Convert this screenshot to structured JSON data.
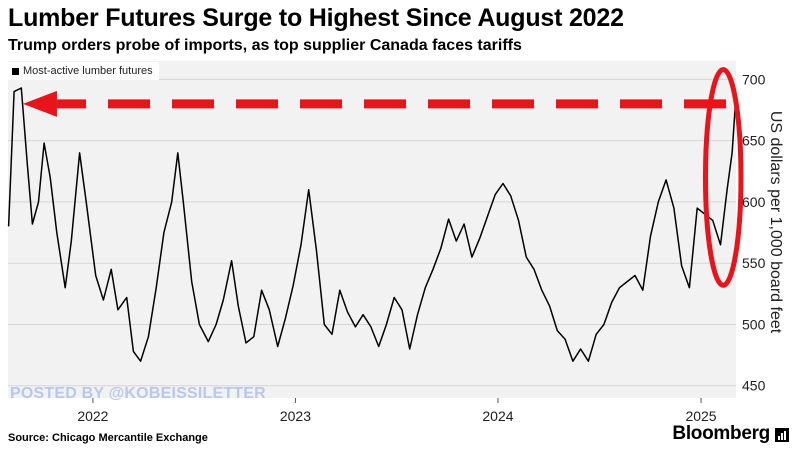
{
  "header": {
    "title": "Lumber Futures Surge to Highest Since August 2022",
    "subtitle": "Trump orders probe of imports, as top supplier Canada faces tariffs"
  },
  "footer": {
    "source": "Source: Chicago Mercantile Exchange",
    "brand": "Bloomberg",
    "watermark": "POSTED BY @KOBEISSILETTER"
  },
  "colors": {
    "line": "#000000",
    "annotation": "#e8141c",
    "background_band": "#f2f2f2",
    "gridline": "#d6d6d6"
  },
  "chart_data": {
    "type": "line",
    "title": "Lumber Futures Surge to Highest Since August 2022",
    "subtitle": "Trump orders probe of imports, as top supplier Canada faces tariffs",
    "ylabel": "US dollars per 1,000 board feet",
    "xlabel": "",
    "legend": {
      "placement": "top-left",
      "entries": [
        "Most-active lumber futures"
      ]
    },
    "y_axis": {
      "side": "right",
      "ylim": [
        440,
        715
      ],
      "ticks": [
        450,
        500,
        550,
        600,
        650,
        700
      ]
    },
    "x_axis": {
      "range": [
        "2021-08-01",
        "2025-03-05"
      ],
      "ticks": [
        {
          "date": "2022-01-01",
          "label": "2022"
        },
        {
          "date": "2023-01-01",
          "label": "2023"
        },
        {
          "date": "2024-01-01",
          "label": "2024"
        },
        {
          "date": "2025-01-01",
          "label": "2025"
        }
      ]
    },
    "grid": true,
    "series": [
      {
        "name": "Most-active lumber futures",
        "points": [
          [
            "2021-08-02",
            580
          ],
          [
            "2021-08-12",
            690
          ],
          [
            "2021-08-25",
            693
          ],
          [
            "2021-09-05",
            630
          ],
          [
            "2021-09-14",
            582
          ],
          [
            "2021-09-25",
            600
          ],
          [
            "2021-10-05",
            648
          ],
          [
            "2021-10-16",
            620
          ],
          [
            "2021-10-28",
            575
          ],
          [
            "2021-11-12",
            530
          ],
          [
            "2021-11-23",
            568
          ],
          [
            "2021-12-08",
            640
          ],
          [
            "2021-12-20",
            600
          ],
          [
            "2022-01-06",
            540
          ],
          [
            "2022-01-20",
            520
          ],
          [
            "2022-02-03",
            545
          ],
          [
            "2022-02-15",
            512
          ],
          [
            "2022-03-03",
            522
          ],
          [
            "2022-03-15",
            478
          ],
          [
            "2022-03-28",
            470
          ],
          [
            "2022-04-11",
            490
          ],
          [
            "2022-04-25",
            530
          ],
          [
            "2022-05-09",
            575
          ],
          [
            "2022-05-23",
            600
          ],
          [
            "2022-06-03",
            640
          ],
          [
            "2022-06-13",
            600
          ],
          [
            "2022-06-28",
            535
          ],
          [
            "2022-07-12",
            500
          ],
          [
            "2022-07-28",
            486
          ],
          [
            "2022-08-11",
            500
          ],
          [
            "2022-08-24",
            520
          ],
          [
            "2022-09-08",
            552
          ],
          [
            "2022-09-20",
            515
          ],
          [
            "2022-10-04",
            485
          ],
          [
            "2022-10-18",
            490
          ],
          [
            "2022-11-01",
            528
          ],
          [
            "2022-11-15",
            512
          ],
          [
            "2022-11-30",
            482
          ],
          [
            "2022-12-14",
            505
          ],
          [
            "2022-12-28",
            532
          ],
          [
            "2023-01-11",
            565
          ],
          [
            "2023-01-25",
            610
          ],
          [
            "2023-02-08",
            560
          ],
          [
            "2023-02-22",
            500
          ],
          [
            "2023-03-08",
            492
          ],
          [
            "2023-03-22",
            528
          ],
          [
            "2023-04-05",
            510
          ],
          [
            "2023-04-19",
            498
          ],
          [
            "2023-05-03",
            508
          ],
          [
            "2023-05-17",
            498
          ],
          [
            "2023-05-31",
            482
          ],
          [
            "2023-06-14",
            500
          ],
          [
            "2023-06-28",
            522
          ],
          [
            "2023-07-12",
            512
          ],
          [
            "2023-07-26",
            480
          ],
          [
            "2023-08-09",
            508
          ],
          [
            "2023-08-23",
            530
          ],
          [
            "2023-09-06",
            545
          ],
          [
            "2023-09-20",
            562
          ],
          [
            "2023-10-04",
            586
          ],
          [
            "2023-10-18",
            568
          ],
          [
            "2023-11-01",
            582
          ],
          [
            "2023-11-15",
            555
          ],
          [
            "2023-11-29",
            570
          ],
          [
            "2023-12-13",
            588
          ],
          [
            "2023-12-27",
            606
          ],
          [
            "2024-01-10",
            615
          ],
          [
            "2024-01-24",
            605
          ],
          [
            "2024-02-07",
            585
          ],
          [
            "2024-02-21",
            555
          ],
          [
            "2024-03-06",
            545
          ],
          [
            "2024-03-20",
            528
          ],
          [
            "2024-04-03",
            515
          ],
          [
            "2024-04-17",
            495
          ],
          [
            "2024-05-01",
            488
          ],
          [
            "2024-05-15",
            470
          ],
          [
            "2024-05-29",
            480
          ],
          [
            "2024-06-12",
            470
          ],
          [
            "2024-06-26",
            492
          ],
          [
            "2024-07-10",
            500
          ],
          [
            "2024-07-24",
            518
          ],
          [
            "2024-08-07",
            530
          ],
          [
            "2024-08-21",
            535
          ],
          [
            "2024-09-04",
            540
          ],
          [
            "2024-09-18",
            528
          ],
          [
            "2024-10-02",
            572
          ],
          [
            "2024-10-16",
            600
          ],
          [
            "2024-10-30",
            618
          ],
          [
            "2024-11-13",
            595
          ],
          [
            "2024-11-27",
            548
          ],
          [
            "2024-12-11",
            530
          ],
          [
            "2024-12-25",
            595
          ],
          [
            "2025-01-08",
            590
          ],
          [
            "2025-01-22",
            585
          ],
          [
            "2025-02-05",
            565
          ],
          [
            "2025-02-17",
            610
          ],
          [
            "2025-02-26",
            640
          ],
          [
            "2025-03-04",
            680
          ]
        ]
      }
    ],
    "annotations": [
      {
        "type": "dashed-arrow",
        "direction": "left",
        "y": 680,
        "from": "2025-02-15",
        "to": "2021-08-28"
      },
      {
        "type": "ellipse",
        "center_date": "2025-02-10",
        "center_y": 620,
        "rx_days": 32,
        "ry_value": 88
      }
    ]
  }
}
